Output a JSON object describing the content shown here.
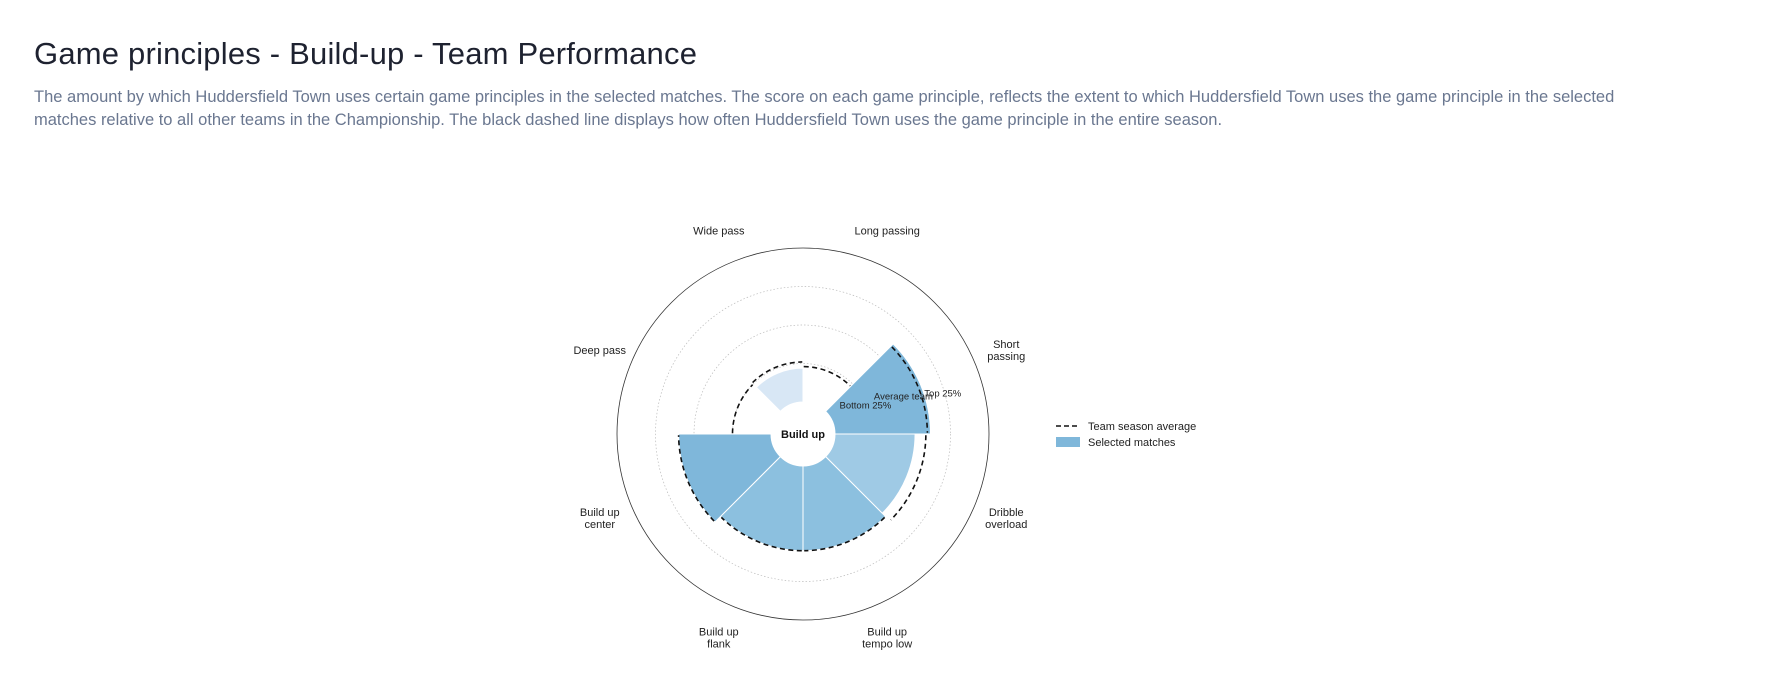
{
  "page": {
    "title": "Game principles - Build-up - Team Performance",
    "description": "The amount by which Huddersfield Town uses certain game principles in the selected matches. The score on each game principle, reflects the extent to which Huddersfield Town uses the game principle in the selected matches relative to all other teams in the Championship. The black dashed line displays how often Huddersfield Town uses the game principle in the entire season."
  },
  "chart_data": {
    "type": "polar-area",
    "center_label": "Build up",
    "ring_labels": [
      "Top 25%",
      "Average team",
      "Bottom 25%"
    ],
    "ring_levels": [
      0.75,
      0.5,
      0.25
    ],
    "categories": [
      "Long passing",
      "Short passing",
      "Dribble overload",
      "Build up tempo low",
      "Build up flank",
      "Build up center",
      "Deep pass",
      "Wide pass"
    ],
    "category_display": [
      [
        "Long passing"
      ],
      [
        "Short",
        "passing"
      ],
      [
        "Dribble",
        "overload"
      ],
      [
        "Build up",
        "tempo low"
      ],
      [
        "Build up",
        "flank"
      ],
      [
        "Build up",
        "center"
      ],
      [
        "Deep pass"
      ],
      [
        "Wide pass"
      ]
    ],
    "series": [
      {
        "name": "Selected matches",
        "values": [
          0.0,
          0.62,
          0.52,
          0.55,
          0.55,
          0.6,
          0.0,
          0.22
        ]
      },
      {
        "name": "Team season average",
        "values": [
          0.23,
          0.6,
          0.59,
          0.55,
          0.55,
          0.6,
          0.25,
          0.26
        ]
      }
    ],
    "colors": {
      "Long passing": "#7fb7da",
      "Short passing": "#7fb7da",
      "Dribble overload": "#9fcae5",
      "Build up tempo low": "#8cc0df",
      "Build up flank": "#8cc0df",
      "Build up center": "#7fb7da",
      "Deep pass": "#7fb7da",
      "Wide pass": "#d8e7f5"
    },
    "legend": {
      "placement": "right",
      "items": [
        {
          "label": "Team season average",
          "style": "dashed",
          "color": "#111111"
        },
        {
          "label": "Selected matches",
          "style": "fill",
          "color": "#7fb7da"
        }
      ]
    },
    "range": [
      0,
      1
    ]
  }
}
